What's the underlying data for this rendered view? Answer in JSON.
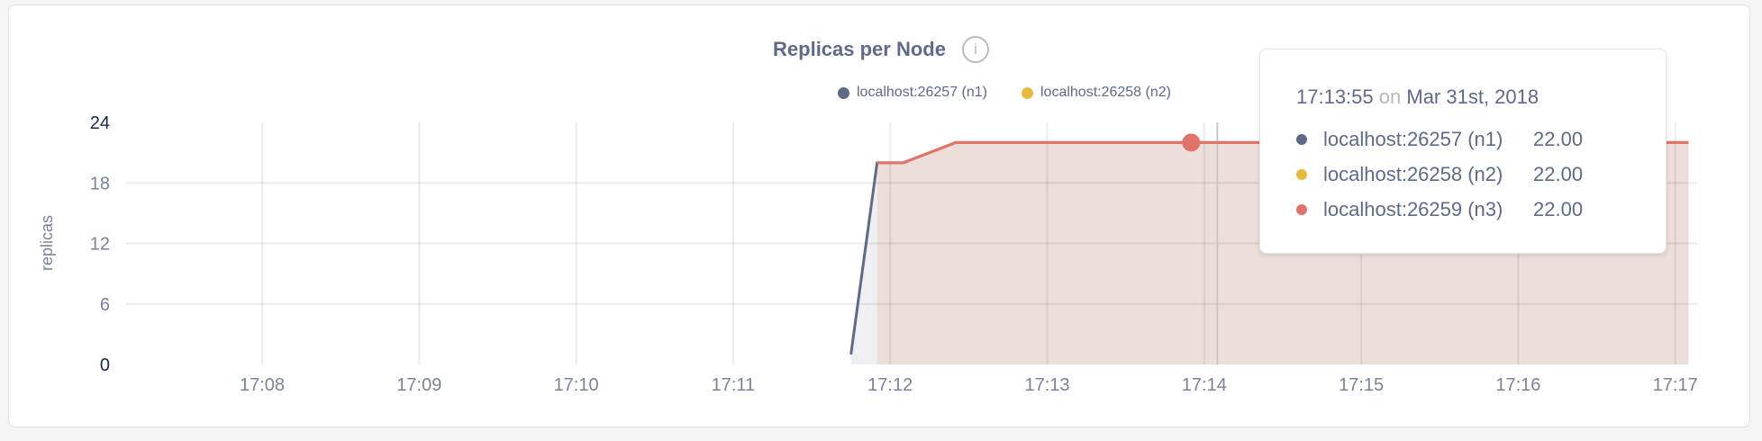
{
  "chart_data": {
    "type": "area",
    "title": "Replicas per Node",
    "ylabel": "replicas",
    "xlabel": "",
    "ylim": [
      0,
      24
    ],
    "yticks": [
      "0",
      "6",
      "12",
      "18",
      "24"
    ],
    "xlim": [
      "17:07:00",
      "17:17:10"
    ],
    "xticks": [
      "17:08",
      "17:09",
      "17:10",
      "17:11",
      "17:12",
      "17:13",
      "17:14",
      "17:15",
      "17:16",
      "17:17"
    ],
    "grid": true,
    "legend_position": "top-right",
    "series": [
      {
        "name": "localhost:26257 (n1)",
        "color": "#5f6a87",
        "points": [
          [
            "17:11:45",
            1
          ],
          [
            "17:11:55",
            20
          ],
          [
            "17:12:05",
            20
          ],
          [
            "17:12:25",
            22
          ],
          [
            "17:17:05",
            22
          ]
        ]
      },
      {
        "name": "localhost:26258 (n2)",
        "color": "#e8b941",
        "points": [
          [
            "17:11:55",
            20
          ],
          [
            "17:12:05",
            20
          ],
          [
            "17:12:25",
            22
          ],
          [
            "17:17:05",
            22
          ]
        ]
      },
      {
        "name": "localhost:26259 (n3)",
        "color": "#e2736a",
        "points": [
          [
            "17:11:55",
            20
          ],
          [
            "17:12:05",
            20
          ],
          [
            "17:12:25",
            22
          ],
          [
            "17:17:05",
            22
          ]
        ]
      }
    ],
    "hover": {
      "time": "17:13:55",
      "cursor_time": "17:14:05",
      "value": 22
    }
  },
  "info_icon": "info-circle-icon",
  "info_glyph": "i",
  "legend": [
    {
      "label": "localhost:26257 (n1)",
      "color": "#5f6a87"
    },
    {
      "label": "localhost:26258 (n2)",
      "color": "#e8b941"
    }
  ],
  "tooltip": {
    "time": "17:13:55",
    "on": "on",
    "date": "Mar 31st, 2018",
    "rows": [
      {
        "name": "localhost:26257 (n1)",
        "value": "22.00",
        "color": "#5f6a87"
      },
      {
        "name": "localhost:26258 (n2)",
        "value": "22.00",
        "color": "#e8b941"
      },
      {
        "name": "localhost:26259 (n3)",
        "value": "22.00",
        "color": "#e2736a"
      }
    ]
  }
}
